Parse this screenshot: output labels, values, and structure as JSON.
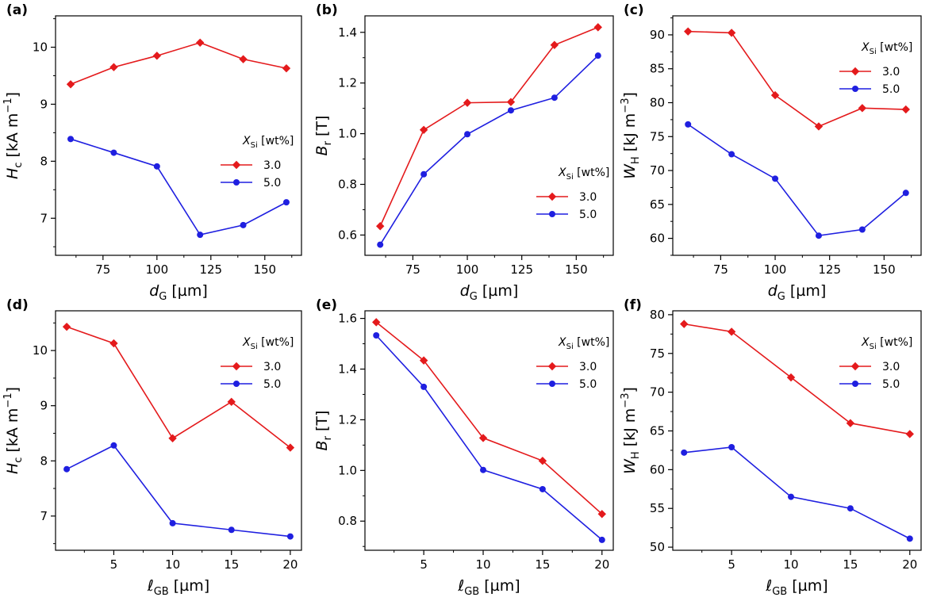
{
  "chart_data": [
    {
      "panel": "(a)",
      "type": "line",
      "x": [
        60,
        80,
        100,
        120,
        140,
        160
      ],
      "series": [
        {
          "name": "3.0",
          "values": [
            9.35,
            9.65,
            9.85,
            10.08,
            9.79,
            9.63
          ],
          "color": "#e41a1c",
          "marker": "diamond"
        },
        {
          "name": "5.0",
          "values": [
            8.39,
            8.15,
            7.91,
            6.71,
            6.88,
            7.28
          ],
          "color": "#1f1fe0",
          "marker": "circle"
        }
      ],
      "xlim": [
        53,
        167
      ],
      "ylim": [
        6.35,
        10.55
      ],
      "xticks": [
        75,
        100,
        125,
        150
      ],
      "yticks": [
        7,
        8,
        9,
        10
      ],
      "xlabel": {
        "sym": "d",
        "sub": "G",
        "unit": " [µm]"
      },
      "ylabel": {
        "sym": "H",
        "sub": "c",
        "unit": " [kA m",
        "sup": "−1",
        "tail": "]"
      },
      "legend": {
        "position": "center-right",
        "title_sym": "X",
        "title_sub": "Si",
        "title_unit": " [wt%]"
      }
    },
    {
      "panel": "(b)",
      "type": "line",
      "x": [
        60,
        80,
        100,
        120,
        140,
        160
      ],
      "series": [
        {
          "name": "3.0",
          "values": [
            0.635,
            1.015,
            1.122,
            1.125,
            1.35,
            1.42
          ],
          "color": "#e41a1c",
          "marker": "diamond"
        },
        {
          "name": "5.0",
          "values": [
            0.562,
            0.84,
            0.998,
            1.092,
            1.142,
            1.308
          ],
          "color": "#1f1fe0",
          "marker": "circle"
        }
      ],
      "xlim": [
        53,
        167
      ],
      "ylim": [
        0.52,
        1.465
      ],
      "xticks": [
        75,
        100,
        125,
        150
      ],
      "yticks": [
        0.6,
        0.8,
        1.0,
        1.2,
        1.4
      ],
      "xlabel": {
        "sym": "d",
        "sub": "G",
        "unit": " [µm]"
      },
      "ylabel": {
        "sym": "B",
        "sub": "r",
        "unit": " [T]",
        "sup": "",
        "tail": ""
      },
      "legend": {
        "position": "lower-right",
        "title_sym": "X",
        "title_sub": "Si",
        "title_unit": " [wt%]"
      }
    },
    {
      "panel": "(c)",
      "type": "line",
      "x": [
        60,
        80,
        100,
        120,
        140,
        160
      ],
      "series": [
        {
          "name": "3.0",
          "values": [
            90.5,
            90.3,
            81.1,
            76.5,
            79.2,
            79.0
          ],
          "color": "#e41a1c",
          "marker": "diamond"
        },
        {
          "name": "5.0",
          "values": [
            76.8,
            72.4,
            68.8,
            60.4,
            61.3,
            66.7
          ],
          "color": "#1f1fe0",
          "marker": "circle"
        }
      ],
      "xlim": [
        53,
        167
      ],
      "ylim": [
        57.5,
        92.8
      ],
      "xticks": [
        75,
        100,
        125,
        150
      ],
      "yticks": [
        60,
        65,
        70,
        75,
        80,
        85,
        90
      ],
      "xlabel": {
        "sym": "d",
        "sub": "G",
        "unit": " [µm]"
      },
      "ylabel": {
        "sym": "W",
        "sub": "H",
        "unit": " [kJ m",
        "sup": "−3",
        "tail": "]"
      },
      "legend": {
        "position": "upper-right",
        "title_sym": "X",
        "title_sub": "Si",
        "title_unit": " [wt%]"
      }
    },
    {
      "panel": "(d)",
      "type": "line",
      "x": [
        1,
        5,
        10,
        15,
        20
      ],
      "series": [
        {
          "name": "3.0",
          "values": [
            10.43,
            10.13,
            8.41,
            9.07,
            8.24
          ],
          "color": "#e41a1c",
          "marker": "diamond"
        },
        {
          "name": "5.0",
          "values": [
            7.85,
            8.28,
            6.87,
            6.75,
            6.63
          ],
          "color": "#1f1fe0",
          "marker": "circle"
        }
      ],
      "xlim": [
        0.05,
        20.95
      ],
      "ylim": [
        6.38,
        10.72
      ],
      "xticks": [
        5,
        10,
        15,
        20
      ],
      "yticks": [
        7,
        8,
        9,
        10
      ],
      "xlabel": {
        "sym": "ℓ",
        "sub": "GB",
        "unit": " [µm]"
      },
      "ylabel": {
        "sym": "H",
        "sub": "c",
        "unit": " [kA m",
        "sup": "−1",
        "tail": "]"
      },
      "legend": {
        "position": "upper-right",
        "title_sym": "X",
        "title_sub": "Si",
        "title_unit": " [wt%]"
      }
    },
    {
      "panel": "(e)",
      "type": "line",
      "x": [
        1,
        5,
        10,
        15,
        20
      ],
      "series": [
        {
          "name": "3.0",
          "values": [
            1.585,
            1.434,
            1.128,
            1.038,
            0.828
          ],
          "color": "#e41a1c",
          "marker": "diamond"
        },
        {
          "name": "5.0",
          "values": [
            1.533,
            1.33,
            1.002,
            0.926,
            0.726
          ],
          "color": "#1f1fe0",
          "marker": "circle"
        }
      ],
      "xlim": [
        0.05,
        20.95
      ],
      "ylim": [
        0.685,
        1.63
      ],
      "xticks": [
        5,
        10,
        15,
        20
      ],
      "yticks": [
        0.8,
        1.0,
        1.2,
        1.4,
        1.6
      ],
      "xlabel": {
        "sym": "ℓ",
        "sub": "GB",
        "unit": " [µm]"
      },
      "ylabel": {
        "sym": "B",
        "sub": "r",
        "unit": " [T]",
        "sup": "",
        "tail": ""
      },
      "legend": {
        "position": "upper-right",
        "title_sym": "X",
        "title_sub": "Si",
        "title_unit": " [wt%]"
      }
    },
    {
      "panel": "(f)",
      "type": "line",
      "x": [
        1,
        5,
        10,
        15,
        20
      ],
      "series": [
        {
          "name": "3.0",
          "values": [
            78.8,
            77.8,
            71.9,
            66.0,
            64.6
          ],
          "color": "#e41a1c",
          "marker": "diamond"
        },
        {
          "name": "5.0",
          "values": [
            62.2,
            62.9,
            56.5,
            55.0,
            51.1
          ],
          "color": "#1f1fe0",
          "marker": "circle"
        }
      ],
      "xlim": [
        0.05,
        20.95
      ],
      "ylim": [
        49.6,
        80.5
      ],
      "xticks": [
        5,
        10,
        15,
        20
      ],
      "yticks": [
        50,
        55,
        60,
        65,
        70,
        75,
        80
      ],
      "xlabel": {
        "sym": "ℓ",
        "sub": "GB",
        "unit": " [µm]"
      },
      "ylabel": {
        "sym": "W",
        "sub": "H",
        "unit": " [kJ m",
        "sup": "−3",
        "tail": "]"
      },
      "legend": {
        "position": "upper-right",
        "title_sym": "X",
        "title_sub": "Si",
        "title_unit": " [wt%]"
      }
    }
  ]
}
